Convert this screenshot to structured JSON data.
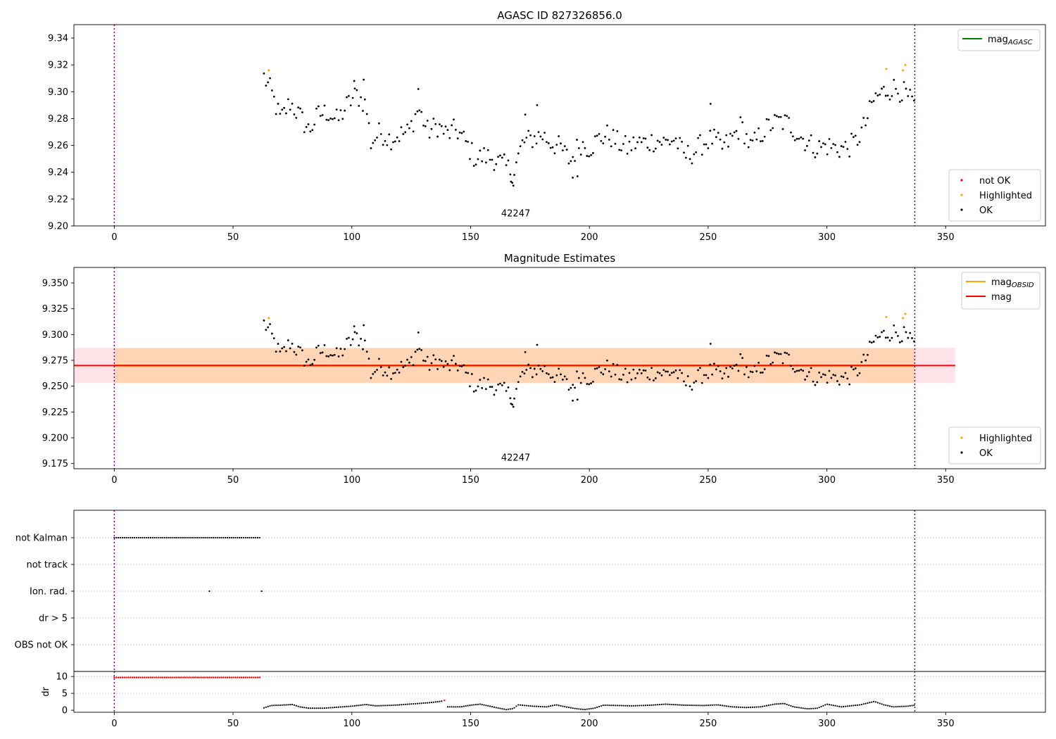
{
  "chart_data": [
    {
      "type": "scatter",
      "title": "AGASC ID 827326856.0",
      "xlim": [
        -17,
        392
      ],
      "ylim": [
        9.2,
        9.35
      ],
      "xticks": [
        0,
        50,
        100,
        150,
        200,
        250,
        300,
        350
      ],
      "yticks": [
        9.2,
        9.22,
        9.24,
        9.26,
        9.28,
        9.3,
        9.32,
        9.34
      ],
      "ytick_decimals": 2,
      "vlines": [
        0,
        337
      ],
      "obsid_label": {
        "text": "42247",
        "x": 169,
        "y": 9.207
      },
      "hlines": [],
      "bands": [],
      "legend_top": [
        {
          "label": "mag",
          "sub": "AGASC",
          "color": "#008000",
          "kind": "line"
        }
      ],
      "legend_bottom": [
        {
          "label": "not OK",
          "color": "#ff0000",
          "kind": "dot"
        },
        {
          "label": "Highlighted",
          "color": "#ffa500",
          "kind": "dot"
        },
        {
          "label": "OK",
          "color": "#000000",
          "kind": "dot"
        }
      ],
      "series_ok_anchors": [
        [
          63,
          9.311
        ],
        [
          66,
          9.3
        ],
        [
          70,
          9.279
        ],
        [
          74,
          9.292
        ],
        [
          78,
          9.282
        ],
        [
          82,
          9.271
        ],
        [
          86,
          9.283
        ],
        [
          90,
          9.285
        ],
        [
          94,
          9.278
        ],
        [
          98,
          9.29
        ],
        [
          102,
          9.298
        ],
        [
          106,
          9.29
        ],
        [
          108,
          9.262
        ],
        [
          112,
          9.27
        ],
        [
          116,
          9.265
        ],
        [
          120,
          9.268
        ],
        [
          124,
          9.27
        ],
        [
          128,
          9.288
        ],
        [
          132,
          9.27
        ],
        [
          136,
          9.275
        ],
        [
          140,
          9.268
        ],
        [
          144,
          9.272
        ],
        [
          148,
          9.262
        ],
        [
          152,
          9.25
        ],
        [
          156,
          9.252
        ],
        [
          160,
          9.25
        ],
        [
          164,
          9.245
        ],
        [
          168,
          9.24
        ],
        [
          172,
          9.262
        ],
        [
          176,
          9.265
        ],
        [
          180,
          9.268
        ],
        [
          184,
          9.262
        ],
        [
          188,
          9.258
        ],
        [
          192,
          9.248
        ],
        [
          196,
          9.262
        ],
        [
          200,
          9.258
        ],
        [
          204,
          9.265
        ],
        [
          208,
          9.268
        ],
        [
          212,
          9.262
        ],
        [
          216,
          9.258
        ],
        [
          220,
          9.262
        ],
        [
          224,
          9.262
        ],
        [
          228,
          9.264
        ],
        [
          232,
          9.262
        ],
        [
          236,
          9.265
        ],
        [
          240,
          9.252
        ],
        [
          244,
          9.255
        ],
        [
          248,
          9.262
        ],
        [
          252,
          9.265
        ],
        [
          256,
          9.258
        ],
        [
          260,
          9.265
        ],
        [
          264,
          9.275
        ],
        [
          268,
          9.258
        ],
        [
          272,
          9.268
        ],
        [
          276,
          9.275
        ],
        [
          280,
          9.278
        ],
        [
          284,
          9.276
        ],
        [
          288,
          9.268
        ],
        [
          292,
          9.262
        ],
        [
          296,
          9.258
        ],
        [
          300,
          9.26
        ],
        [
          304,
          9.258
        ],
        [
          308,
          9.258
        ],
        [
          312,
          9.262
        ],
        [
          316,
          9.275
        ],
        [
          320,
          9.295
        ],
        [
          324,
          9.3
        ],
        [
          328,
          9.303
        ],
        [
          332,
          9.3
        ],
        [
          337,
          9.289
        ]
      ],
      "noise": 0.0085,
      "step": 0.85,
      "extra_ok": [
        [
          173,
          9.283
        ],
        [
          178,
          9.29
        ],
        [
          101,
          9.308
        ],
        [
          105,
          9.309
        ],
        [
          128,
          9.302
        ],
        [
          167,
          9.233
        ],
        [
          168,
          9.23
        ],
        [
          193,
          9.236
        ],
        [
          195,
          9.237
        ],
        [
          251,
          9.291
        ]
      ],
      "highlighted": [
        [
          65,
          9.316
        ],
        [
          325,
          9.317
        ],
        [
          332,
          9.316
        ],
        [
          333,
          9.32
        ]
      ],
      "not_ok": []
    },
    {
      "type": "scatter",
      "title": "Magnitude Estimates",
      "xlim": [
        -17,
        392
      ],
      "ylim": [
        9.17,
        9.365
      ],
      "xticks": [
        0,
        50,
        100,
        150,
        200,
        250,
        300,
        350
      ],
      "yticks": [
        9.175,
        9.2,
        9.225,
        9.25,
        9.275,
        9.3,
        9.325,
        9.35
      ],
      "ytick_decimals": 3,
      "vlines": [
        0,
        337
      ],
      "obsid_label": {
        "text": "42247",
        "x": 169,
        "y": 9.178
      },
      "bands": [
        {
          "x0": -17,
          "x1": 354,
          "y0": 9.253,
          "y1": 9.287,
          "color": "#ffc0cb",
          "opacity": 0.45
        },
        {
          "x0": 0,
          "x1": 337,
          "y0": 9.253,
          "y1": 9.287,
          "color": "#ffa500",
          "opacity": 0.22
        }
      ],
      "hlines": [
        {
          "x0": 0,
          "x1": 337,
          "y": 9.27,
          "color": "#ffa500",
          "width": 2.5
        },
        {
          "x0": -17,
          "x1": 354,
          "y": 9.27,
          "color": "#ff0000",
          "width": 2
        }
      ],
      "legend_top": [
        {
          "label": "mag",
          "sub": "OBSID",
          "color": "#ffa500",
          "kind": "line"
        },
        {
          "label": "mag",
          "sub": "",
          "color": "#ff0000",
          "kind": "line"
        }
      ],
      "legend_bottom": [
        {
          "label": "Highlighted",
          "color": "#ffa500",
          "kind": "dot"
        },
        {
          "label": "OK",
          "color": "#000000",
          "kind": "dot"
        }
      ],
      "series_ok_anchors": "same_as_panel_1",
      "noise": 0.0085,
      "step": 0.85,
      "extra_ok": [
        [
          173,
          9.283
        ],
        [
          178,
          9.29
        ],
        [
          101,
          9.308
        ],
        [
          105,
          9.309
        ],
        [
          128,
          9.302
        ],
        [
          167,
          9.233
        ],
        [
          168,
          9.23
        ],
        [
          193,
          9.236
        ],
        [
          195,
          9.237
        ],
        [
          251,
          9.291
        ]
      ],
      "highlighted": [
        [
          65,
          9.316
        ],
        [
          325,
          9.317
        ],
        [
          332,
          9.316
        ],
        [
          333,
          9.32
        ]
      ],
      "not_ok": []
    },
    {
      "type": "flags",
      "xlim": [
        -17,
        392
      ],
      "categories": [
        "not Kalman",
        "not track",
        "Ion. rad.",
        "dr > 5",
        "OBS not OK"
      ],
      "vlines": [
        0,
        337
      ],
      "not_kalman_range": [
        0,
        62
      ],
      "ion_rad_x": [
        40,
        62
      ]
    },
    {
      "type": "scatter",
      "xlim": [
        -17,
        392
      ],
      "ylim": [
        -0.6,
        11.5
      ],
      "xticks": [
        0,
        50,
        100,
        150,
        200,
        250,
        300,
        350
      ],
      "yticks": [
        0,
        5,
        10
      ],
      "ylabel": "dr",
      "hlines_dotted": [
        5,
        10
      ],
      "vlines": [
        0,
        337
      ],
      "red_range": [
        0,
        62
      ],
      "red_value": 9.7,
      "red_extra": [
        [
          139,
          2.9
        ]
      ],
      "dr_anchors": [
        [
          63,
          0.7
        ],
        [
          66,
          1.4
        ],
        [
          70,
          1.5
        ],
        [
          75,
          1.7
        ],
        [
          78,
          1.0
        ],
        [
          82,
          0.6
        ],
        [
          88,
          0.6
        ],
        [
          94,
          0.9
        ],
        [
          100,
          1.2
        ],
        [
          106,
          1.7
        ],
        [
          110,
          1.3
        ],
        [
          118,
          1.5
        ],
        [
          126,
          1.9
        ],
        [
          132,
          2.2
        ],
        [
          136,
          2.5
        ],
        [
          138,
          2.7
        ],
        [
          140,
          1.0
        ],
        [
          146,
          1.0
        ],
        [
          150,
          1.5
        ],
        [
          154,
          1.8
        ],
        [
          158,
          1.2
        ],
        [
          162,
          0.6
        ],
        [
          165,
          0.2
        ],
        [
          168,
          0.5
        ],
        [
          170,
          1.6
        ],
        [
          176,
          1.2
        ],
        [
          182,
          1.0
        ],
        [
          186,
          1.6
        ],
        [
          190,
          1.0
        ],
        [
          194,
          0.5
        ],
        [
          198,
          0.2
        ],
        [
          202,
          0.6
        ],
        [
          206,
          1.5
        ],
        [
          212,
          1.4
        ],
        [
          218,
          1.3
        ],
        [
          226,
          1.5
        ],
        [
          232,
          1.8
        ],
        [
          240,
          1.5
        ],
        [
          248,
          1.4
        ],
        [
          254,
          1.6
        ],
        [
          260,
          1.0
        ],
        [
          266,
          0.8
        ],
        [
          272,
          1.0
        ],
        [
          278,
          1.8
        ],
        [
          282,
          2.0
        ],
        [
          286,
          1.0
        ],
        [
          292,
          0.4
        ],
        [
          296,
          0.6
        ],
        [
          300,
          1.8
        ],
        [
          306,
          1.0
        ],
        [
          314,
          1.6
        ],
        [
          320,
          2.6
        ],
        [
          324,
          1.6
        ],
        [
          328,
          1.0
        ],
        [
          334,
          1.2
        ],
        [
          337,
          1.5
        ]
      ]
    }
  ]
}
